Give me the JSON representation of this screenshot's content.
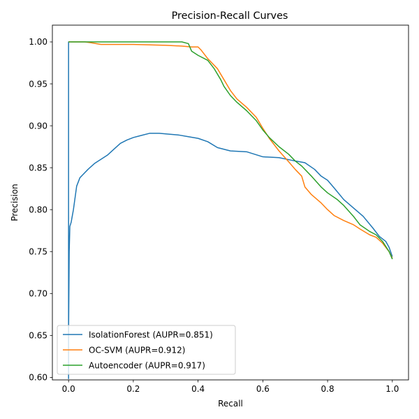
{
  "chart_data": {
    "type": "line",
    "title": "Precision-Recall Curves",
    "xlabel": "Recall",
    "ylabel": "Precision",
    "xlim": [
      -0.05,
      1.05
    ],
    "ylim": [
      0.597,
      1.02
    ],
    "xticks": [
      0.0,
      0.2,
      0.4,
      0.6,
      0.8,
      1.0
    ],
    "xtick_labels": [
      "0.0",
      "0.2",
      "0.4",
      "0.6",
      "0.8",
      "1.0"
    ],
    "yticks": [
      0.6,
      0.65,
      0.7,
      0.75,
      0.8,
      0.85,
      0.9,
      0.95,
      1.0
    ],
    "ytick_labels": [
      "0.60",
      "0.65",
      "0.70",
      "0.75",
      "0.80",
      "0.85",
      "0.90",
      "0.95",
      "1.00"
    ],
    "grid": false,
    "legend_position": "lower-left",
    "series": [
      {
        "name": "IsolationForest (AUPR=0.851)",
        "color": "#1f77b4",
        "x": [
          0,
          0,
          0,
          0.002,
          0.004,
          0.008,
          0.015,
          0.025,
          0.035,
          0.045,
          0.06,
          0.08,
          0.1,
          0.12,
          0.14,
          0.16,
          0.18,
          0.2,
          0.22,
          0.25,
          0.28,
          0.31,
          0.34,
          0.37,
          0.4,
          0.43,
          0.46,
          0.5,
          0.55,
          0.6,
          0.65,
          0.7,
          0.73,
          0.76,
          0.78,
          0.8,
          0.82,
          0.85,
          0.88,
          0.91,
          0.94,
          0.96,
          0.98,
          0.99,
          1.0
        ],
        "y": [
          0.598,
          1.0,
          0.65,
          0.75,
          0.78,
          0.785,
          0.8,
          0.828,
          0.838,
          0.842,
          0.848,
          0.855,
          0.86,
          0.865,
          0.872,
          0.879,
          0.883,
          0.886,
          0.888,
          0.891,
          0.891,
          0.89,
          0.889,
          0.887,
          0.885,
          0.881,
          0.874,
          0.87,
          0.869,
          0.863,
          0.862,
          0.858,
          0.856,
          0.848,
          0.84,
          0.835,
          0.826,
          0.812,
          0.802,
          0.792,
          0.778,
          0.768,
          0.762,
          0.755,
          0.744
        ]
      },
      {
        "name": "OC-SVM (AUPR=0.912)",
        "color": "#ff7f0e",
        "x": [
          0.0,
          0.05,
          0.07,
          0.1,
          0.2,
          0.3,
          0.35,
          0.38,
          0.4,
          0.41,
          0.43,
          0.46,
          0.48,
          0.5,
          0.52,
          0.55,
          0.58,
          0.6,
          0.62,
          0.65,
          0.68,
          0.7,
          0.72,
          0.73,
          0.75,
          0.78,
          0.8,
          0.82,
          0.85,
          0.88,
          0.9,
          0.93,
          0.95,
          0.97,
          0.99,
          1.0
        ],
        "y": [
          1.0,
          1.0,
          0.999,
          0.997,
          0.997,
          0.996,
          0.995,
          0.994,
          0.994,
          0.99,
          0.98,
          0.968,
          0.955,
          0.942,
          0.932,
          0.922,
          0.91,
          0.897,
          0.885,
          0.87,
          0.857,
          0.848,
          0.84,
          0.827,
          0.818,
          0.808,
          0.8,
          0.793,
          0.787,
          0.782,
          0.777,
          0.77,
          0.767,
          0.76,
          0.75,
          0.742
        ]
      },
      {
        "name": "Autoencoder (AUPR=0.917)",
        "color": "#2ca02c",
        "x": [
          0.0,
          0.1,
          0.2,
          0.3,
          0.35,
          0.37,
          0.38,
          0.4,
          0.43,
          0.45,
          0.47,
          0.48,
          0.5,
          0.52,
          0.55,
          0.58,
          0.6,
          0.62,
          0.65,
          0.68,
          0.7,
          0.72,
          0.75,
          0.78,
          0.8,
          0.83,
          0.85,
          0.88,
          0.9,
          0.93,
          0.95,
          0.97,
          0.99,
          1.0
        ],
        "y": [
          1.0,
          1.0,
          1.0,
          1.0,
          1.0,
          0.998,
          0.989,
          0.984,
          0.978,
          0.968,
          0.955,
          0.947,
          0.936,
          0.928,
          0.918,
          0.906,
          0.895,
          0.886,
          0.875,
          0.866,
          0.858,
          0.852,
          0.84,
          0.827,
          0.82,
          0.812,
          0.805,
          0.792,
          0.782,
          0.774,
          0.77,
          0.762,
          0.75,
          0.741
        ]
      }
    ]
  }
}
